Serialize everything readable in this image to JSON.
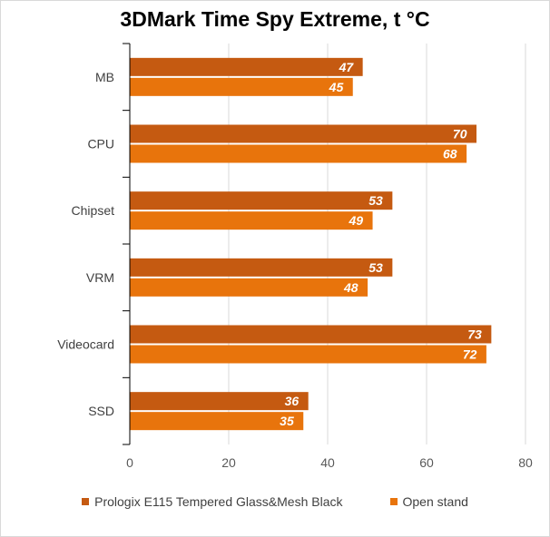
{
  "chart_data": {
    "type": "bar",
    "orientation": "horizontal",
    "title": "3DMark Time Spy Extreme, t °C",
    "categories": [
      "MB",
      "CPU",
      "Chipset",
      "VRM",
      "Videocard",
      "SSD"
    ],
    "series": [
      {
        "name": "Prologix E115 Tempered Glass&Mesh Black",
        "color": "#c55a11",
        "values": [
          47,
          70,
          53,
          53,
          73,
          36
        ]
      },
      {
        "name": "Open stand",
        "color": "#e8740c",
        "values": [
          45,
          68,
          49,
          48,
          72,
          35
        ]
      }
    ],
    "xlim": [
      0,
      80
    ],
    "xticks": [
      0,
      20,
      40,
      60,
      80
    ],
    "grid": true,
    "legend_position": "bottom"
  }
}
